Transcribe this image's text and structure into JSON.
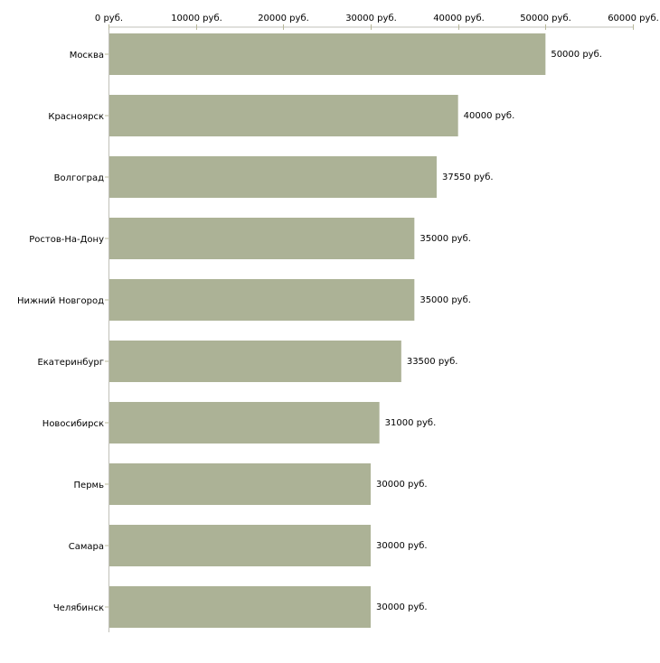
{
  "chart_data": {
    "type": "bar",
    "orientation": "horizontal",
    "title": "",
    "xlabel": "",
    "ylabel": "",
    "xlim": [
      0,
      60000
    ],
    "x_ticks": [
      0,
      10000,
      20000,
      30000,
      40000,
      50000,
      60000
    ],
    "x_tick_labels": [
      "0 руб.",
      "10000 руб.",
      "20000 руб.",
      "30000 руб.",
      "40000 руб.",
      "50000 руб.",
      "60000 руб."
    ],
    "axis_position": "top",
    "grid": false,
    "categories": [
      "Москва",
      "Красноярск",
      "Волгоград",
      "Ростов-На-Дону",
      "Нижний Новгород",
      "Екатеринбург",
      "Новосибирск",
      "Пермь",
      "Самара",
      "Челябинск"
    ],
    "values": [
      50000,
      40000,
      37550,
      35000,
      35000,
      33500,
      31000,
      30000,
      30000,
      30000
    ],
    "data_labels": [
      "50000 руб.",
      "40000 руб.",
      "37550 руб.",
      "35000 руб.",
      "35000 руб.",
      "33500 руб.",
      "31000 руб.",
      "30000 руб.",
      "30000 руб.",
      "30000 руб."
    ],
    "colors": {
      "bar": "#acb296",
      "axis": "#c0c0b8",
      "tick": "#b8b89a"
    }
  }
}
